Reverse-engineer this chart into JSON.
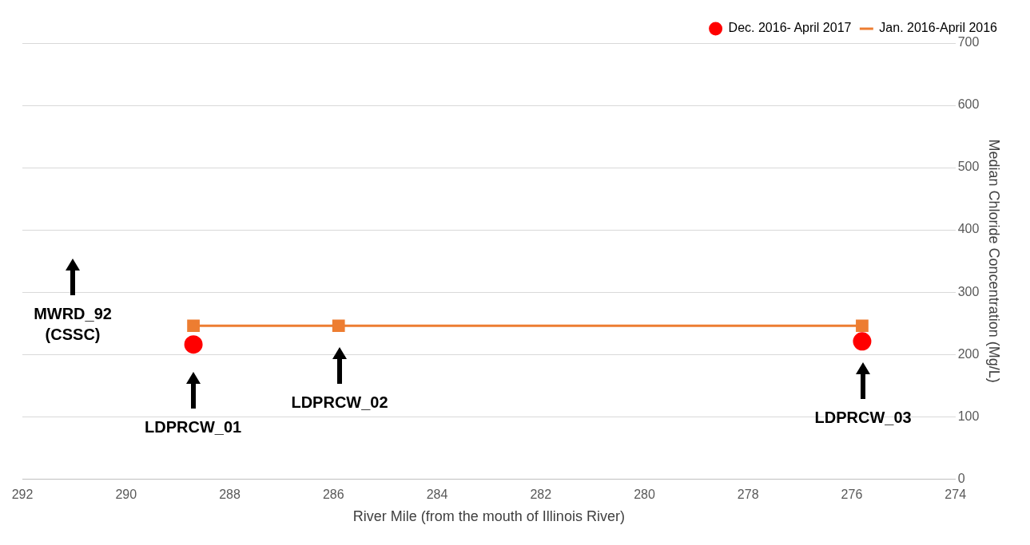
{
  "chart_data": {
    "type": "line",
    "xlabel": "River Mile (from the mouth of Illinois River)",
    "ylabel": "Median Chloride Concentration (Mg/L)",
    "xlim": [
      292,
      274
    ],
    "xticks": [
      292,
      290,
      288,
      286,
      284,
      282,
      280,
      278,
      276,
      274
    ],
    "ylim": [
      0,
      700
    ],
    "yticks": [
      0,
      100,
      200,
      300,
      400,
      500,
      600,
      700
    ],
    "grid": "y",
    "legend": "top right",
    "series": [
      {
        "name": "Dec. 2016- April 2017",
        "type": "scatter",
        "color": "#ff0000",
        "marker": "circle",
        "x": [
          288.7,
          285.9,
          275.8
        ],
        "values": [
          216,
          null,
          221
        ]
      },
      {
        "name": "Jan. 2016-April 2016",
        "color": "#ed7d31",
        "marker": "square",
        "x": [
          288.7,
          285.9,
          275.8
        ],
        "values": [
          246,
          246,
          246
        ]
      }
    ],
    "annotations": [
      "MWRD_92 (CSSC)",
      "LDPRCW_01",
      "LDPRCW_02",
      "LDPRCW_03"
    ]
  }
}
